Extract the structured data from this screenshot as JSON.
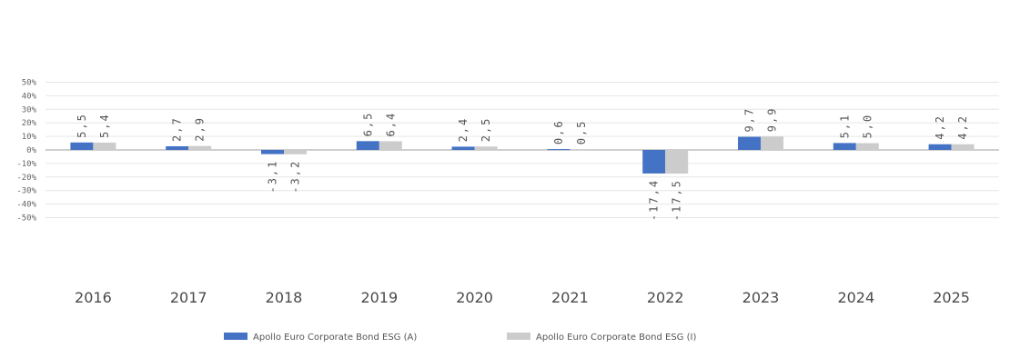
{
  "chart_data": {
    "type": "bar",
    "categories": [
      "2016",
      "2017",
      "2018",
      "2019",
      "2020",
      "2021",
      "2022",
      "2023",
      "2024",
      "2025"
    ],
    "series": [
      {
        "name": "Apollo Euro Corporate Bond ESG (A)",
        "color": "#4472c4",
        "values": [
          5.5,
          2.7,
          -3.1,
          6.5,
          2.4,
          0.6,
          -17.4,
          9.7,
          5.1,
          4.2
        ],
        "labels": [
          "5,5",
          "2,7",
          "-3,1",
          "6,5",
          "2,4",
          "0,6",
          "-17,4",
          "9,7",
          "5,1",
          "4,2"
        ]
      },
      {
        "name": "Apollo Euro Corporate Bond ESG (I)",
        "color": "#cccccc",
        "values": [
          5.4,
          2.9,
          -3.2,
          6.4,
          2.5,
          0.5,
          -17.5,
          9.9,
          5.0,
          4.2
        ],
        "labels": [
          "5,4",
          "2,9",
          "-3,2",
          "6,4",
          "2,5",
          "0,5",
          "-17,5",
          "9,9",
          "5,0",
          "4,2"
        ]
      }
    ],
    "y_ticks": [
      50,
      40,
      30,
      20,
      10,
      0,
      -10,
      -20,
      -30,
      -40,
      -50
    ],
    "y_tick_labels": [
      "50%",
      "40%",
      "30%",
      "20%",
      "10%",
      "0%",
      "-10%",
      "-20%",
      "-30%",
      "-40%",
      "-50%"
    ],
    "ylim": [
      -50,
      50
    ],
    "grid": true,
    "legend_position": "bottom-center",
    "title": "",
    "xlabel": "",
    "ylabel": ""
  }
}
